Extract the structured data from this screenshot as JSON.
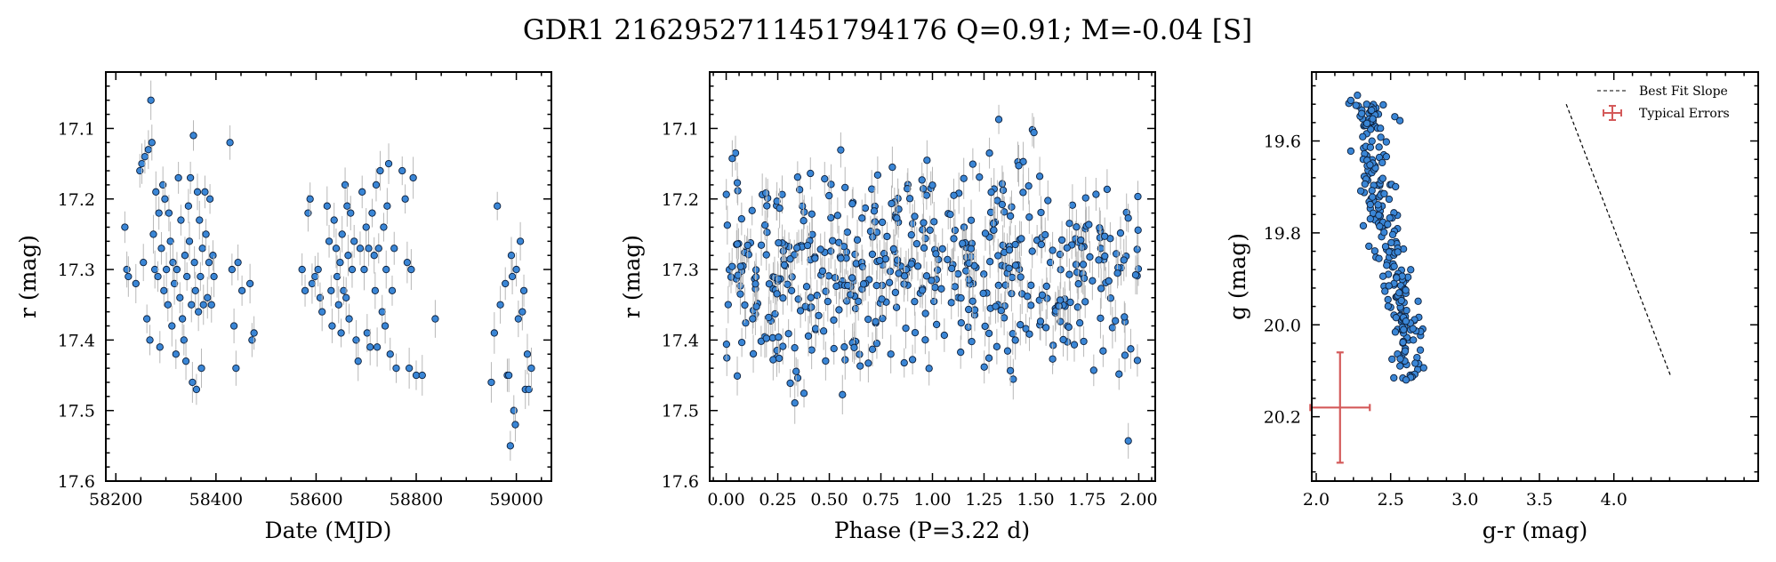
{
  "figure": {
    "title": "GDR1 2162952711451794176  Q=0.91; M=-0.04 [S]"
  },
  "colors": {
    "marker": "#3a86d6",
    "marker_edge": "#0d1f3a",
    "errorbar": "#b8b8b8",
    "typical_error": "#d45a5a",
    "fit_line": "#000000"
  },
  "chart_data": [
    {
      "type": "scatter",
      "name": "light-curve",
      "title": "",
      "xlabel": "Date (MJD)",
      "ylabel": "r (mag)",
      "xlim": [
        58180,
        59070
      ],
      "ylim": [
        17.6,
        17.02
      ],
      "y_inverted": true,
      "xticks": [
        58200,
        58400,
        58600,
        58800,
        59000
      ],
      "xticklabels": [
        "58200",
        "58400",
        "58600",
        "58800",
        "59000"
      ],
      "yticks": [
        17.1,
        17.2,
        17.3,
        17.4,
        17.5,
        17.6
      ],
      "yticklabels": [
        "17.1",
        "17.2",
        "17.3",
        "17.4",
        "17.5",
        "17.6"
      ],
      "y_error_typical": 0.025,
      "points": [
        [
          58218,
          17.24
        ],
        [
          58222,
          17.3
        ],
        [
          58225,
          17.31
        ],
        [
          58240,
          17.32
        ],
        [
          58248,
          17.16
        ],
        [
          58252,
          17.15
        ],
        [
          58255,
          17.29
        ],
        [
          58258,
          17.14
        ],
        [
          58262,
          17.37
        ],
        [
          58265,
          17.13
        ],
        [
          58268,
          17.4
        ],
        [
          58270,
          17.06
        ],
        [
          58272,
          17.12
        ],
        [
          58275,
          17.25
        ],
        [
          58278,
          17.3
        ],
        [
          58280,
          17.19
        ],
        [
          58284,
          17.31
        ],
        [
          58286,
          17.22
        ],
        [
          58288,
          17.41
        ],
        [
          58291,
          17.27
        ],
        [
          58294,
          17.18
        ],
        [
          58296,
          17.33
        ],
        [
          58298,
          17.2
        ],
        [
          58301,
          17.3
        ],
        [
          58304,
          17.35
        ],
        [
          58306,
          17.22
        ],
        [
          58309,
          17.26
        ],
        [
          58312,
          17.38
        ],
        [
          58314,
          17.29
        ],
        [
          58317,
          17.32
        ],
        [
          58320,
          17.42
        ],
        [
          58322,
          17.3
        ],
        [
          58325,
          17.17
        ],
        [
          58328,
          17.34
        ],
        [
          58330,
          17.23
        ],
        [
          58333,
          17.37
        ],
        [
          58336,
          17.4
        ],
        [
          58338,
          17.28
        ],
        [
          58340,
          17.43
        ],
        [
          58342,
          17.31
        ],
        [
          58345,
          17.21
        ],
        [
          58347,
          17.26
        ],
        [
          58349,
          17.17
        ],
        [
          58351,
          17.35
        ],
        [
          58353,
          17.46
        ],
        [
          58355,
          17.11
        ],
        [
          58357,
          17.29
        ],
        [
          58359,
          17.33
        ],
        [
          58361,
          17.47
        ],
        [
          58363,
          17.19
        ],
        [
          58365,
          17.36
        ],
        [
          58367,
          17.23
        ],
        [
          58369,
          17.31
        ],
        [
          58371,
          17.44
        ],
        [
          58373,
          17.27
        ],
        [
          58375,
          17.35
        ],
        [
          58378,
          17.19
        ],
        [
          58380,
          17.25
        ],
        [
          58383,
          17.34
        ],
        [
          58386,
          17.29
        ],
        [
          58388,
          17.2
        ],
        [
          58391,
          17.35
        ],
        [
          58394,
          17.28
        ],
        [
          58396,
          17.31
        ],
        [
          58428,
          17.12
        ],
        [
          58432,
          17.3
        ],
        [
          58436,
          17.38
        ],
        [
          58440,
          17.44
        ],
        [
          58444,
          17.29
        ],
        [
          58452,
          17.33
        ],
        [
          58468,
          17.32
        ],
        [
          58472,
          17.4
        ],
        [
          58476,
          17.39
        ],
        [
          58572,
          17.3
        ],
        [
          58578,
          17.33
        ],
        [
          58584,
          17.22
        ],
        [
          58588,
          17.2
        ],
        [
          58592,
          17.32
        ],
        [
          58598,
          17.31
        ],
        [
          58604,
          17.3
        ],
        [
          58608,
          17.34
        ],
        [
          58612,
          17.36
        ],
        [
          58622,
          17.21
        ],
        [
          58626,
          17.26
        ],
        [
          58630,
          17.33
        ],
        [
          58632,
          17.38
        ],
        [
          58636,
          17.23
        ],
        [
          58640,
          17.27
        ],
        [
          58642,
          17.31
        ],
        [
          58645,
          17.35
        ],
        [
          58648,
          17.29
        ],
        [
          58650,
          17.39
        ],
        [
          58652,
          17.25
        ],
        [
          58655,
          17.33
        ],
        [
          58658,
          17.18
        ],
        [
          58660,
          17.34
        ],
        [
          58662,
          17.21
        ],
        [
          58664,
          17.28
        ],
        [
          58666,
          17.37
        ],
        [
          58669,
          17.22
        ],
        [
          58672,
          17.3
        ],
        [
          58676,
          17.26
        ],
        [
          58680,
          17.4
        ],
        [
          58684,
          17.43
        ],
        [
          58688,
          17.27
        ],
        [
          58692,
          17.19
        ],
        [
          58696,
          17.3
        ],
        [
          58700,
          17.24
        ],
        [
          58702,
          17.39
        ],
        [
          58705,
          17.27
        ],
        [
          58708,
          17.41
        ],
        [
          58712,
          17.22
        ],
        [
          58716,
          17.28
        ],
        [
          58718,
          17.33
        ],
        [
          58720,
          17.18
        ],
        [
          58722,
          17.41
        ],
        [
          58725,
          17.27
        ],
        [
          58728,
          17.16
        ],
        [
          58732,
          17.36
        ],
        [
          58735,
          17.24
        ],
        [
          58738,
          17.38
        ],
        [
          58740,
          17.3
        ],
        [
          58742,
          17.21
        ],
        [
          58745,
          17.15
        ],
        [
          58748,
          17.42
        ],
        [
          58752,
          17.33
        ],
        [
          58756,
          17.27
        ],
        [
          58760,
          17.44
        ],
        [
          58772,
          17.16
        ],
        [
          58778,
          17.2
        ],
        [
          58782,
          17.29
        ],
        [
          58786,
          17.44
        ],
        [
          58790,
          17.3
        ],
        [
          58794,
          17.17
        ],
        [
          58800,
          17.45
        ],
        [
          58812,
          17.45
        ],
        [
          58838,
          17.37
        ],
        [
          58950,
          17.46
        ],
        [
          58956,
          17.39
        ],
        [
          58962,
          17.21
        ],
        [
          58968,
          17.35
        ],
        [
          58978,
          17.32
        ],
        [
          58982,
          17.45
        ],
        [
          58985,
          17.45
        ],
        [
          58988,
          17.55
        ],
        [
          58990,
          17.28
        ],
        [
          58992,
          17.31
        ],
        [
          58995,
          17.5
        ],
        [
          58998,
          17.52
        ],
        [
          59000,
          17.3
        ],
        [
          59004,
          17.37
        ],
        [
          59008,
          17.26
        ],
        [
          59012,
          17.36
        ],
        [
          59015,
          17.33
        ],
        [
          59018,
          17.47
        ],
        [
          59022,
          17.42
        ],
        [
          59025,
          17.47
        ],
        [
          59030,
          17.44
        ]
      ]
    },
    {
      "type": "scatter",
      "name": "phase-folded",
      "title": "",
      "xlabel": "Phase (P=3.22 d)",
      "ylabel": "r (mag)",
      "xlim": [
        -0.08,
        2.08
      ],
      "ylim": [
        17.6,
        17.02
      ],
      "y_inverted": true,
      "xticks": [
        0.0,
        0.25,
        0.5,
        0.75,
        1.0,
        1.25,
        1.5,
        1.75,
        2.0
      ],
      "xticklabels": [
        "0.00",
        "0.25",
        "0.50",
        "0.75",
        "1.00",
        "1.25",
        "1.50",
        "1.75",
        "2.00"
      ],
      "yticks": [
        17.1,
        17.2,
        17.3,
        17.4,
        17.5,
        17.6
      ],
      "yticklabels": [
        "17.1",
        "17.2",
        "17.3",
        "17.4",
        "17.5",
        "17.6"
      ],
      "period_days": 3.22,
      "n_points": 520,
      "seed": 7,
      "mag_mean": 17.3,
      "mag_spread": 0.075,
      "mag_min": 17.08,
      "mag_max": 17.55
    },
    {
      "type": "scatter",
      "name": "color-magnitude",
      "title": "",
      "xlabel": "g-r (mag)",
      "ylabel": "g (mag)",
      "xlim": [
        1.97,
        4.97
      ],
      "ylim": [
        20.34,
        19.45
      ],
      "y_inverted": true,
      "xticks": [
        2.0,
        2.5,
        3.0,
        3.5,
        4.0
      ],
      "xticklabels": [
        "2.0",
        "2.5",
        "3.0",
        "3.5",
        "4.0"
      ],
      "yticks": [
        19.6,
        19.8,
        20.0,
        20.2
      ],
      "yticklabels": [
        "19.6",
        "19.8",
        "20.0",
        "20.2"
      ],
      "n_points": 240,
      "seed": 11,
      "cloud": {
        "g_min": 19.5,
        "g_max": 20.12,
        "gr_at_top": 2.32,
        "slope_gr_per_g": 0.95,
        "gr_scatter": 0.06
      },
      "best_fit_line": {
        "x": [
          3.68,
          4.38
        ],
        "y": [
          19.52,
          20.11
        ]
      },
      "typical_error": {
        "x": 2.16,
        "y": 20.18,
        "x_err": 0.2,
        "y_err": 0.12
      },
      "legend": {
        "position": "upper-right",
        "entries": [
          {
            "label": "Best Fit Slope",
            "style": "dashed-line"
          },
          {
            "label": "Typical Errors",
            "style": "errorbar"
          }
        ]
      }
    }
  ]
}
